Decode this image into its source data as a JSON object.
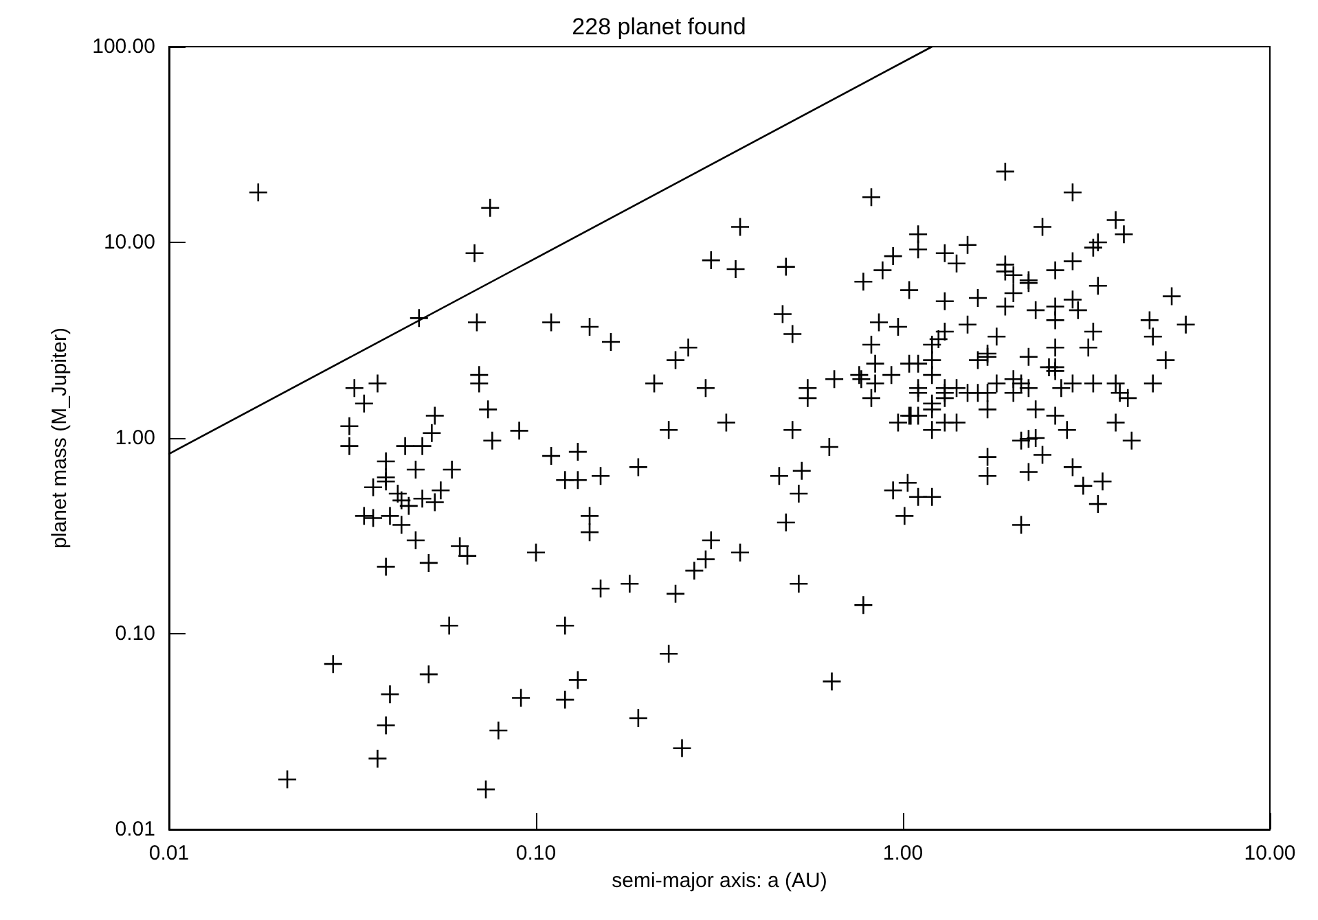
{
  "chart_data": {
    "type": "scatter",
    "title": "228 planet found",
    "xlabel": "semi-major axis: a (AU)",
    "ylabel": "planet mass (M_Jupiter)",
    "log": "xy",
    "grid": false,
    "xlim": [
      0.01,
      10
    ],
    "xticks": [
      {
        "value": 0.01,
        "label": "0.01"
      },
      {
        "value": 0.1,
        "label": "0.10"
      },
      {
        "value": 1,
        "label": "1.00"
      },
      {
        "value": 10,
        "label": "10.00"
      }
    ],
    "ylim": [
      0.01,
      100
    ],
    "yticks": [
      {
        "value": 0.01,
        "label": "0.01"
      },
      {
        "value": 0.1,
        "label": "0.10"
      },
      {
        "value": 1,
        "label": "1.00"
      },
      {
        "value": 10,
        "label": "10.00"
      },
      {
        "value": 100,
        "label": "100.00"
      }
    ],
    "series": [
      {
        "color": "#000000",
        "marker": "cross",
        "x": [
          0.0175,
          0.075,
          0.068,
          0.048,
          0.069,
          0.07,
          0.07,
          0.032,
          0.037,
          0.034,
          0.053,
          0.074,
          0.031,
          0.052,
          0.09,
          0.076,
          0.031,
          0.044,
          0.049,
          0.039,
          0.047,
          0.059,
          0.039,
          0.039,
          0.036,
          0.055,
          0.042,
          0.043,
          0.049,
          0.045,
          0.053,
          0.034,
          0.036,
          0.04,
          0.043,
          0.047,
          0.062,
          0.065,
          0.051,
          0.039,
          0.1,
          0.058,
          0.028,
          0.051,
          0.04,
          0.091,
          0.039,
          0.079,
          0.037,
          0.021,
          0.073,
          0.82,
          0.36,
          0.94,
          0.3,
          0.35,
          0.48,
          0.88,
          0.78,
          1.04,
          0.11,
          0.14,
          0.16,
          0.47,
          0.5,
          0.86,
          0.97,
          0.26,
          0.24,
          0.82,
          0.84,
          1.04,
          0.21,
          0.29,
          0.55,
          0.55,
          0.65,
          0.76,
          0.77,
          0.84,
          0.93,
          0.82,
          0.23,
          0.33,
          0.5,
          0.97,
          1.04,
          0.11,
          0.13,
          0.12,
          0.13,
          0.15,
          0.19,
          0.46,
          0.53,
          0.52,
          0.63,
          0.94,
          1.03,
          1.01,
          0.48,
          0.14,
          0.14,
          0.3,
          0.29,
          0.27,
          0.36,
          0.15,
          0.18,
          0.24,
          0.52,
          0.78,
          0.12,
          0.23,
          0.13,
          0.64,
          0.12,
          0.19,
          0.25,
          1.9,
          2.9,
          3.8,
          2.4,
          4.0,
          3.4,
          3.3,
          1.1,
          1.1,
          1.3,
          1.4,
          1.5,
          1.9,
          1.9,
          2.0,
          2.9,
          2.6,
          2.2,
          2.2,
          2.0,
          3.4,
          5.4,
          1.3,
          1.6,
          1.9,
          2.9,
          2.3,
          2.6,
          3.0,
          4.7,
          5.9,
          2.6,
          1.5,
          1.3,
          3.3,
          4.8,
          1.25,
          1.2,
          1.8,
          2.6,
          3.2,
          1.7,
          1.7,
          1.6,
          2.2,
          5.2,
          1.1,
          1.2,
          1.2,
          2.5,
          2.6,
          2.6,
          1.8,
          2.0,
          2.1,
          2.2,
          2.7,
          2.9,
          3.3,
          3.8,
          4.8,
          1.1,
          1.1,
          1.3,
          1.4,
          1.5,
          1.6,
          1.3,
          1.3,
          1.2,
          1.2,
          1.7,
          2.0,
          3.9,
          4.1,
          1.7,
          2.3,
          2.6,
          2.8,
          3.8,
          4.2,
          1.05,
          1.1,
          1.3,
          1.4,
          1.2,
          2.1,
          2.2,
          2.3,
          2.4,
          1.7,
          1.7,
          2.2,
          2.9,
          3.1,
          3.5,
          3.4,
          1.1,
          1.2,
          2.1
        ],
        "values": [
          18,
          15,
          8.8,
          4.1,
          3.9,
          2.1,
          1.9,
          1.8,
          1.9,
          1.5,
          1.3,
          1.4,
          1.15,
          1.06,
          1.09,
          0.97,
          0.91,
          0.91,
          0.91,
          0.76,
          0.69,
          0.69,
          0.63,
          0.6,
          0.56,
          0.54,
          0.52,
          0.48,
          0.49,
          0.45,
          0.47,
          0.4,
          0.39,
          0.4,
          0.36,
          0.3,
          0.28,
          0.25,
          0.23,
          0.22,
          0.26,
          0.11,
          0.07,
          0.062,
          0.049,
          0.047,
          0.034,
          0.032,
          0.023,
          0.018,
          0.016,
          17,
          12,
          8.5,
          8.1,
          7.3,
          7.5,
          7.2,
          6.3,
          5.7,
          3.9,
          3.7,
          3.1,
          4.3,
          3.4,
          3.9,
          3.7,
          2.9,
          2.5,
          3.0,
          2.4,
          2.4,
          1.9,
          1.8,
          1.8,
          1.6,
          2.0,
          2.1,
          2.0,
          1.9,
          2.1,
          1.6,
          1.1,
          1.2,
          1.1,
          1.2,
          1.3,
          0.81,
          0.85,
          0.61,
          0.61,
          0.64,
          0.71,
          0.64,
          0.68,
          0.52,
          0.9,
          0.54,
          0.59,
          0.4,
          0.37,
          0.4,
          0.33,
          0.3,
          0.24,
          0.21,
          0.26,
          0.17,
          0.18,
          0.16,
          0.18,
          0.14,
          0.11,
          0.079,
          0.058,
          0.057,
          0.046,
          0.037,
          0.026,
          23,
          18,
          13,
          12,
          11,
          10,
          9.4,
          11,
          9.2,
          8.8,
          7.8,
          9.7,
          7.7,
          7.1,
          6.8,
          8.0,
          7.2,
          6.4,
          6.2,
          5.5,
          6.0,
          5.3,
          5.0,
          5.2,
          4.7,
          5.1,
          4.5,
          4.7,
          4.5,
          4.0,
          3.8,
          4.0,
          3.8,
          3.5,
          3.5,
          3.3,
          3.2,
          3.0,
          3.3,
          2.9,
          2.9,
          2.7,
          2.6,
          2.5,
          2.6,
          2.5,
          2.4,
          2.5,
          2.1,
          2.3,
          2.3,
          2.2,
          1.9,
          2.0,
          1.9,
          1.8,
          1.8,
          1.9,
          1.9,
          1.9,
          1.9,
          1.7,
          1.8,
          1.8,
          1.8,
          1.7,
          1.7,
          1.7,
          1.6,
          1.5,
          1.4,
          1.7,
          1.7,
          1.7,
          1.6,
          1.4,
          1.4,
          1.3,
          1.1,
          1.2,
          0.97,
          1.3,
          1.3,
          1.2,
          1.2,
          1.1,
          0.97,
          0.99,
          1.0,
          0.82,
          0.8,
          0.64,
          0.67,
          0.71,
          0.57,
          0.6,
          0.46,
          0.5,
          0.5,
          0.36
        ]
      },
      {
        "type": "line",
        "color": "#000000",
        "line_style": "solid",
        "marker": "none",
        "x": [
          0.01,
          1.2
        ],
        "values": [
          0.83,
          100
        ]
      }
    ]
  }
}
